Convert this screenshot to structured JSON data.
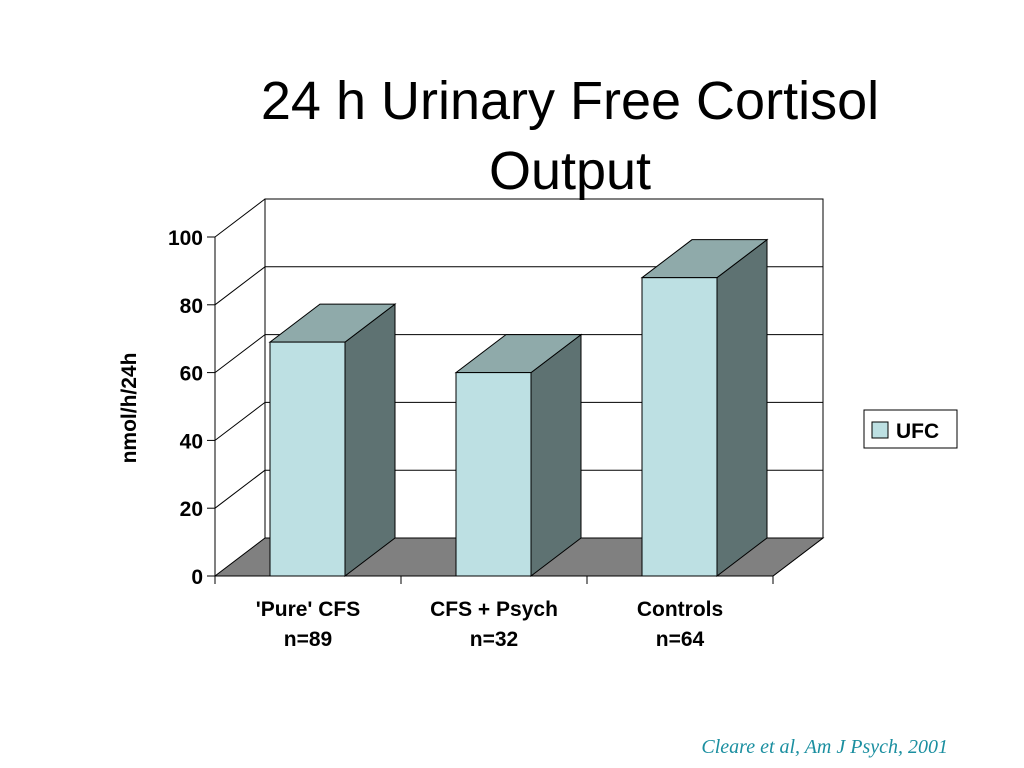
{
  "title_lines": [
    "24 h Urinary Free Cortisol",
    "Output"
  ],
  "citation": "Cleare et al, Am J Psych, 2001",
  "chart_data": {
    "type": "bar",
    "style": "3d",
    "categories": [
      [
        "'Pure' CFS",
        "n=89"
      ],
      [
        "CFS + Psych",
        "n=32"
      ],
      [
        "Controls",
        "n=64"
      ]
    ],
    "series": [
      {
        "name": "UFC",
        "values": [
          69,
          60,
          88
        ]
      }
    ],
    "ylabel": "nmol/h/24h",
    "xlabel": "",
    "ylim": [
      0,
      100
    ],
    "yticks": [
      0,
      20,
      40,
      60,
      80,
      100
    ],
    "grid": true,
    "legend_position": "right",
    "colors": {
      "bar_front": "#bde0e3",
      "bar_top": "#8faaaa",
      "bar_side": "#5e7272",
      "floor": "#808080"
    }
  }
}
